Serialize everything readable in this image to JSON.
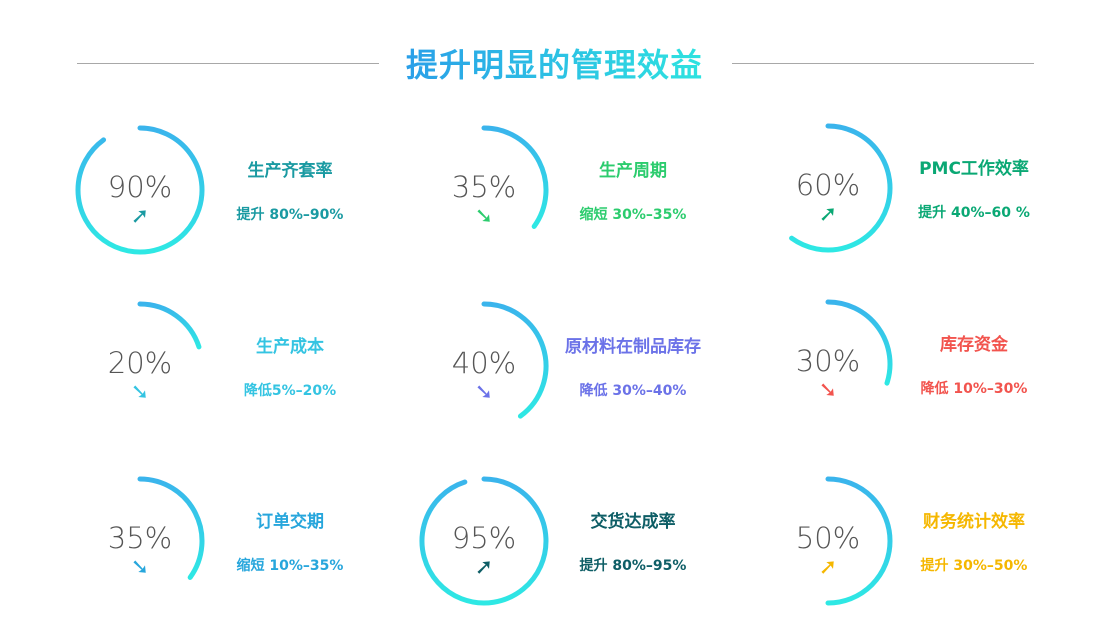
{
  "title": "提升明显的管理效益",
  "ring_gradient": [
    "#3ab4ec",
    "#2ee8e4"
  ],
  "items": [
    {
      "value": "90%",
      "percent": 90,
      "name": "生产齐套率",
      "desc": "提升 80%–90%",
      "direction": "up",
      "color": "#1a9aa2"
    },
    {
      "value": "35%",
      "percent": 35,
      "name": "生产周期",
      "desc": "缩短 30%–35%",
      "direction": "down",
      "color": "#2ccc6e"
    },
    {
      "value": "60%",
      "percent": 60,
      "name": "PMC工作效率",
      "desc": "提升 40%–60 %",
      "direction": "up",
      "color": "#0aa874"
    },
    {
      "value": "20%",
      "percent": 20,
      "name": "生产成本",
      "desc": "降低5%–20%",
      "direction": "down",
      "color": "#34c4e2"
    },
    {
      "value": "40%",
      "percent": 40,
      "name": "原材料在制品库存",
      "desc": "降低 30%–40%",
      "direction": "down",
      "color": "#6b72e8"
    },
    {
      "value": "30%",
      "percent": 30,
      "name": "库存资金",
      "desc": "降低 10%–30%",
      "direction": "down",
      "color": "#f2544e"
    },
    {
      "value": "35%",
      "percent": 35,
      "name": "订单交期",
      "desc": "缩短 10%–35%",
      "direction": "down",
      "color": "#27a6dc"
    },
    {
      "value": "95%",
      "percent": 95,
      "name": "交货达成率",
      "desc": "提升 80%–95%",
      "direction": "up",
      "color": "#0e5e66"
    },
    {
      "value": "50%",
      "percent": 50,
      "name": "财务统计效率",
      "desc": "提升 30%–50%",
      "direction": "up",
      "color": "#f5b700"
    }
  ]
}
